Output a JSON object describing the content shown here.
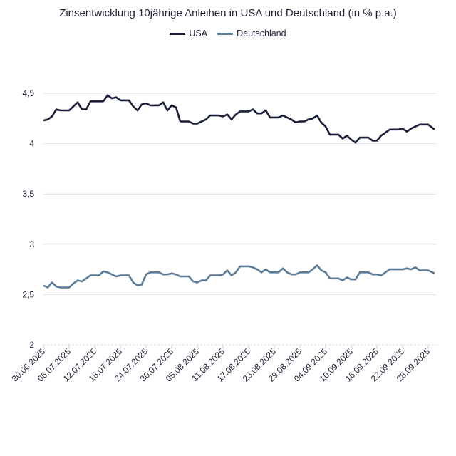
{
  "chart_data": {
    "type": "line",
    "title": "Zinsentwicklung 10jährige Anleihen in USA und Deutschland (in % p.a.)",
    "xlabel": "",
    "ylabel": "",
    "x_start": "30.06.2025",
    "x_end": "30.09.2025",
    "x_ticks": [
      "30.06.2025",
      "06.07.2025",
      "12.07.2025",
      "18.07.2025",
      "24.07.2025",
      "30.07.2025",
      "05.08.2025",
      "11.08.2025",
      "17.08.2025",
      "23.08.2025",
      "29.08.2025",
      "04.09.2025",
      "10.09.2025",
      "16.09.2025",
      "22.09.2025",
      "28.09.2025"
    ],
    "y_ticks": [
      "2",
      "2,5",
      "3",
      "3,5",
      "4",
      "4,5"
    ],
    "ylim": [
      2,
      4.5
    ],
    "grid": true,
    "legend_position": "top",
    "series": [
      {
        "name": "USA",
        "color": "#1c1f3a",
        "values": [
          4.23,
          4.24,
          4.27,
          4.34,
          4.33,
          4.33,
          4.33,
          4.37,
          4.41,
          4.34,
          4.34,
          4.42,
          4.42,
          4.42,
          4.42,
          4.48,
          4.45,
          4.46,
          4.43,
          4.43,
          4.43,
          4.37,
          4.33,
          4.39,
          4.4,
          4.38,
          4.38,
          4.38,
          4.41,
          4.33,
          4.38,
          4.36,
          4.22,
          4.22,
          4.22,
          4.2,
          4.2,
          4.22,
          4.24,
          4.28,
          4.28,
          4.28,
          4.27,
          4.29,
          4.24,
          4.29,
          4.32,
          4.32,
          4.32,
          4.34,
          4.3,
          4.3,
          4.33,
          4.26,
          4.26,
          4.26,
          4.28,
          4.26,
          4.24,
          4.21,
          4.22,
          4.22,
          4.24,
          4.25,
          4.28,
          4.21,
          4.17,
          4.09,
          4.09,
          4.09,
          4.05,
          4.08,
          4.04,
          4.01,
          4.06,
          4.06,
          4.06,
          4.03,
          4.03,
          4.08,
          4.11,
          4.14,
          4.14,
          4.14,
          4.15,
          4.12,
          4.15,
          4.17,
          4.19,
          4.19,
          4.19,
          4.14
        ]
      },
      {
        "name": "Deutschland",
        "color": "#5b7c99",
        "values": [
          2.59,
          2.57,
          2.62,
          2.58,
          2.57,
          2.57,
          2.57,
          2.61,
          2.64,
          2.63,
          2.66,
          2.69,
          2.69,
          2.69,
          2.73,
          2.72,
          2.7,
          2.68,
          2.69,
          2.69,
          2.69,
          2.62,
          2.59,
          2.6,
          2.7,
          2.72,
          2.72,
          2.72,
          2.7,
          2.7,
          2.71,
          2.7,
          2.68,
          2.68,
          2.68,
          2.63,
          2.62,
          2.64,
          2.64,
          2.69,
          2.69,
          2.69,
          2.7,
          2.74,
          2.69,
          2.72,
          2.78,
          2.78,
          2.78,
          2.77,
          2.75,
          2.72,
          2.75,
          2.72,
          2.72,
          2.72,
          2.76,
          2.72,
          2.7,
          2.7,
          2.72,
          2.72,
          2.72,
          2.75,
          2.79,
          2.74,
          2.72,
          2.66,
          2.66,
          2.66,
          2.64,
          2.67,
          2.65,
          2.65,
          2.72,
          2.72,
          2.72,
          2.7,
          2.7,
          2.69,
          2.72,
          2.75,
          2.75,
          2.75,
          2.75,
          2.76,
          2.75,
          2.77,
          2.74,
          2.74,
          2.74,
          2.71
        ]
      }
    ]
  }
}
